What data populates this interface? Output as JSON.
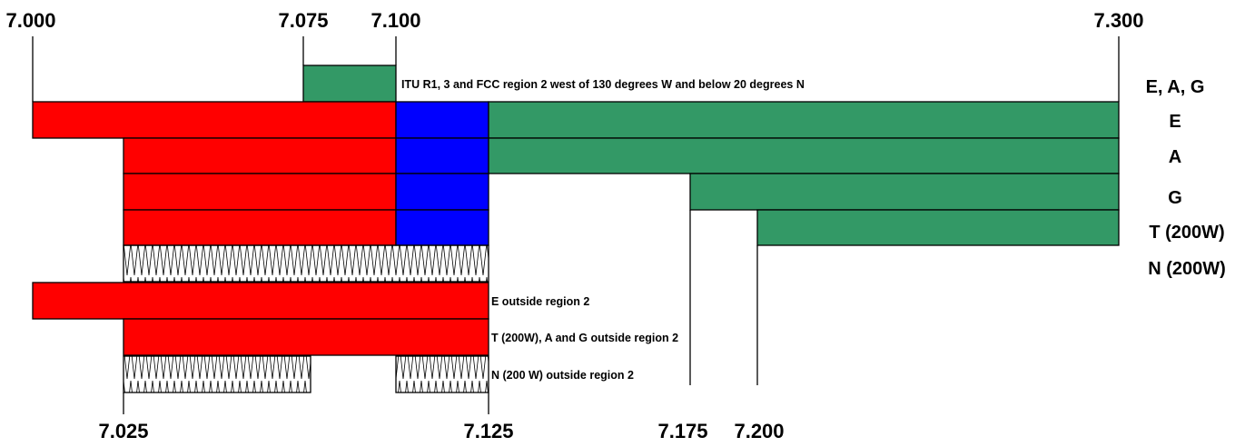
{
  "colors": {
    "phone": "#ff0000",
    "voice": "#0000ff",
    "data": "#339966",
    "outline": "#000000"
  },
  "ticks": {
    "top": [
      "7.000",
      "7.075",
      "7.100",
      "7.300"
    ],
    "bottom": [
      "7.025",
      "7.125",
      "7.175",
      "7.200"
    ]
  },
  "license_classes": [
    "E, A, G",
    "E",
    "A",
    "G",
    "T (200W)",
    "N (200W)"
  ],
  "notes": {
    "itu": "ITU R1, 3 and FCC region 2 west of 130 degrees W and below 20 degrees N",
    "e_outside": "E outside region 2",
    "t_outside": "T (200W), A and G outside region 2",
    "n_outside": "N (200 W) outside region 2"
  }
}
